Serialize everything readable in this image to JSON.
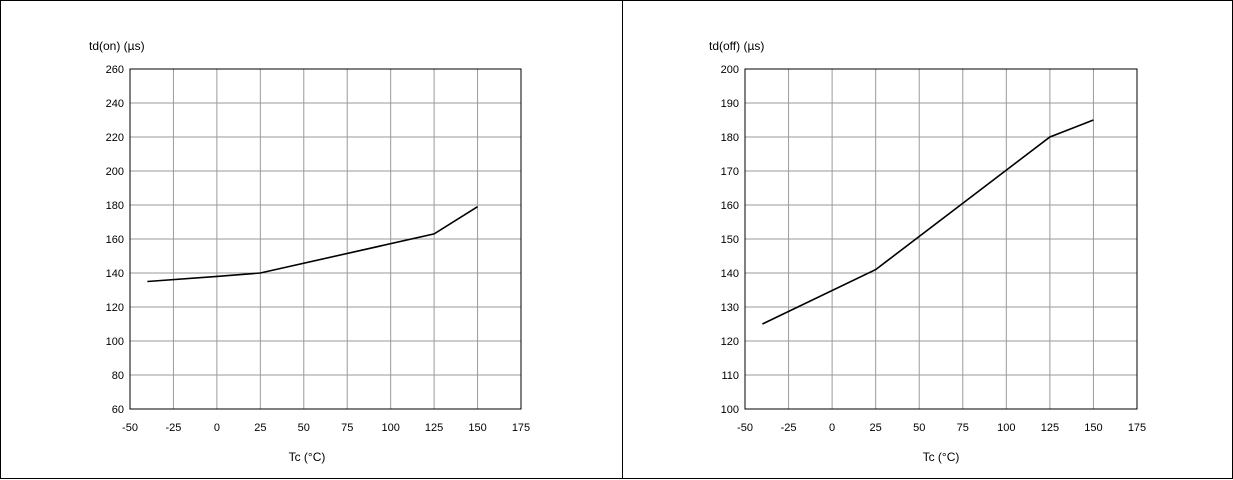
{
  "chart_data": [
    {
      "type": "line",
      "title": "",
      "xlabel": "Tc (°C)",
      "ylabel": "td(on) (µs)",
      "xlim": [
        -50,
        175
      ],
      "ylim": [
        60,
        260
      ],
      "xticks": [
        -50,
        -25,
        0,
        25,
        50,
        75,
        100,
        125,
        150,
        175
      ],
      "yticks": [
        60,
        80,
        100,
        120,
        140,
        160,
        180,
        200,
        220,
        240,
        260
      ],
      "grid": true,
      "series": [
        {
          "x": [
            -40,
            0,
            25,
            125,
            150
          ],
          "y": [
            135,
            138,
            140,
            163,
            179
          ]
        }
      ]
    },
    {
      "type": "line",
      "title": "",
      "xlabel": "Tc (°C)",
      "ylabel": "td(off) (µs)",
      "xlim": [
        -50,
        175
      ],
      "ylim": [
        100,
        200
      ],
      "xticks": [
        -50,
        -25,
        0,
        25,
        50,
        75,
        100,
        125,
        150,
        175
      ],
      "yticks": [
        100,
        110,
        120,
        130,
        140,
        150,
        160,
        170,
        180,
        190,
        200
      ],
      "grid": true,
      "series": [
        {
          "x": [
            -40,
            25,
            125,
            150
          ],
          "y": [
            125,
            141,
            180,
            185
          ]
        }
      ]
    }
  ]
}
